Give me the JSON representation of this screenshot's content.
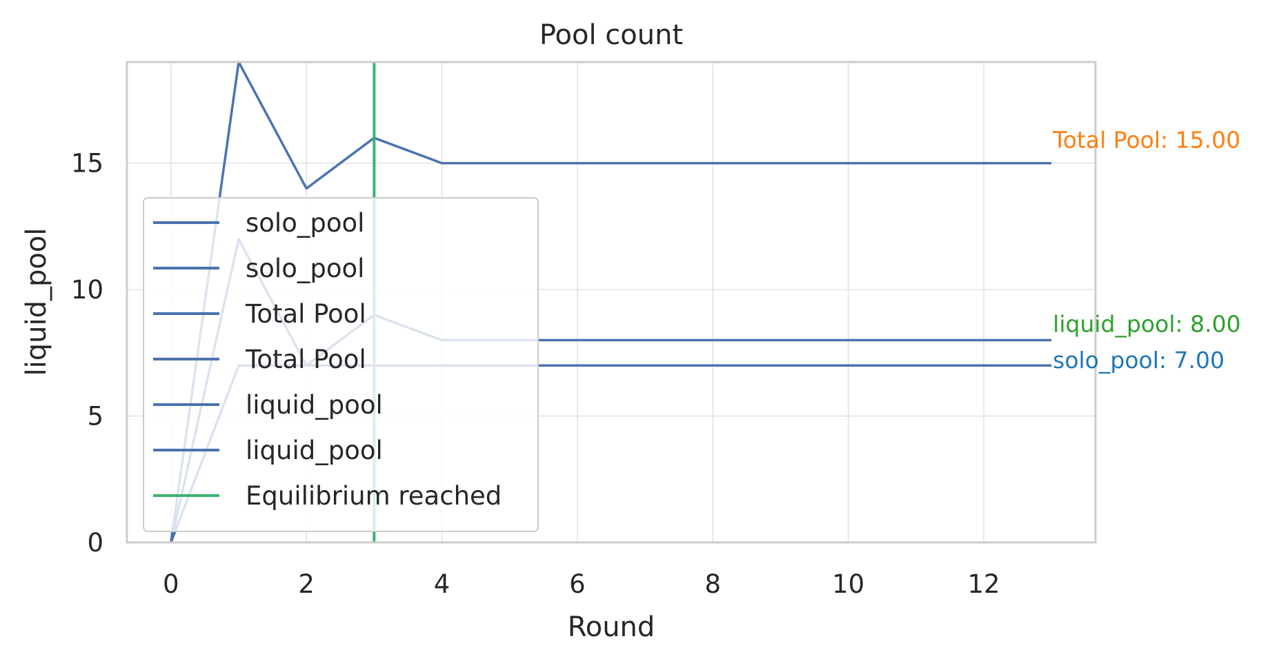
{
  "chart_data": {
    "type": "line",
    "title": "Pool count",
    "xlabel": "Round",
    "ylabel": "liquid_pool",
    "xlim": [
      -0.65,
      13.65
    ],
    "ylim": [
      0,
      19
    ],
    "xticks": [
      0,
      2,
      4,
      6,
      8,
      10,
      12
    ],
    "yticks": [
      0,
      5,
      10,
      15
    ],
    "grid": true,
    "x": [
      0,
      1,
      2,
      3,
      4,
      5,
      6,
      7,
      8,
      9,
      10,
      11,
      12,
      13
    ],
    "series": [
      {
        "name": "solo_pool",
        "color": "#4c72b0",
        "values": [
          0,
          7,
          7,
          7,
          7,
          7,
          7,
          7,
          7,
          7,
          7,
          7,
          7,
          7
        ]
      },
      {
        "name": "liquid_pool",
        "color": "#4c72b0",
        "values": [
          0,
          12,
          7,
          9,
          8,
          8,
          8,
          8,
          8,
          8,
          8,
          8,
          8,
          8
        ]
      },
      {
        "name": "Total Pool",
        "color": "#4c72b0",
        "values": [
          0,
          19,
          14,
          16,
          15,
          15,
          15,
          15,
          15,
          15,
          15,
          15,
          15,
          15
        ]
      }
    ],
    "vline": {
      "x": 3,
      "label": "Equilibrium reached",
      "color": "#3cb371"
    },
    "legend": {
      "placement": "lower-left",
      "entries": [
        {
          "label": "solo_pool",
          "color": "#4c72b0"
        },
        {
          "label": "solo_pool",
          "color": "#4c72b0"
        },
        {
          "label": "Total Pool",
          "color": "#4c72b0"
        },
        {
          "label": "Total Pool",
          "color": "#4c72b0"
        },
        {
          "label": "liquid_pool",
          "color": "#4c72b0"
        },
        {
          "label": "liquid_pool",
          "color": "#4c72b0"
        },
        {
          "label": "Equilibrium reached",
          "color": "#3cb371"
        }
      ]
    },
    "end_labels": [
      {
        "text": "Total Pool: 15.00",
        "color": "#ff7f0e",
        "y": 15
      },
      {
        "text": "liquid_pool: 8.00",
        "color": "#2ca02c",
        "y": 8
      },
      {
        "text": "solo_pool: 7.00",
        "color": "#1f77b4",
        "y": 7
      }
    ]
  }
}
